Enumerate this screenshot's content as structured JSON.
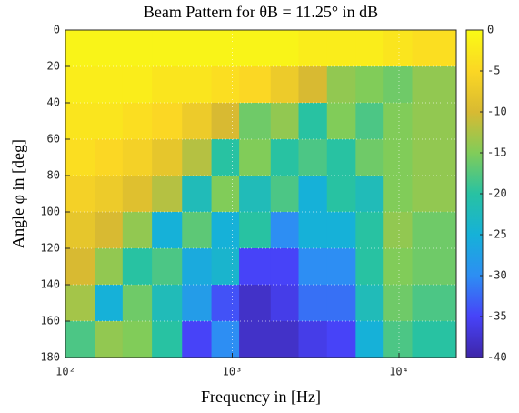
{
  "chart_data": {
    "type": "heatmap",
    "title": "Beam Pattern for θB = 11.25° in dB",
    "x_label": "Frequency in [Hz]",
    "y_label": "Angle φ in [deg]",
    "x_scale": "log",
    "xlim": [
      100,
      22050
    ],
    "xticks": [
      {
        "value": 100,
        "label": "10²"
      },
      {
        "value": 1000,
        "label": "10³"
      },
      {
        "value": 10000,
        "label": "10⁴"
      }
    ],
    "ylim": [
      0,
      180
    ],
    "yticks": [
      0,
      20,
      40,
      60,
      80,
      100,
      120,
      140,
      160,
      180
    ],
    "y_inverted": true,
    "grid": true,
    "xbins": [
      100,
      150,
      220,
      330,
      500,
      750,
      1100,
      1700,
      2500,
      3700,
      5500,
      8000,
      12000,
      22050
    ],
    "ybins": [
      0,
      20,
      40,
      60,
      80,
      100,
      120,
      140,
      160,
      180
    ],
    "z": [
      [
        -1,
        -1,
        -1,
        -1,
        -1,
        -1,
        -1,
        -1,
        -2,
        -2,
        -2,
        -3,
        -4
      ],
      [
        -2,
        -2,
        -2,
        -3,
        -3,
        -4,
        -5,
        -7,
        -10,
        -14,
        -15,
        -16,
        -14
      ],
      [
        -3,
        -3,
        -4,
        -5,
        -7,
        -10,
        -16,
        -14,
        -20,
        -15,
        -18,
        -15,
        -14
      ],
      [
        -4,
        -5,
        -6,
        -8,
        -12,
        -20,
        -15,
        -20,
        -18,
        -20,
        -16,
        -15,
        -14
      ],
      [
        -6,
        -7,
        -9,
        -12,
        -22,
        -15,
        -22,
        -18,
        -25,
        -20,
        -22,
        -15,
        -14
      ],
      [
        -8,
        -10,
        -14,
        -25,
        -17,
        -25,
        -20,
        -30,
        -25,
        -25,
        -20,
        -14,
        -16
      ],
      [
        -10,
        -14,
        -20,
        -18,
        -26,
        -24,
        -35,
        -35,
        -30,
        -30,
        -20,
        -15,
        -16
      ],
      [
        -13,
        -25,
        -16,
        -22,
        -28,
        -34,
        -38,
        -36,
        -32,
        -32,
        -22,
        -16,
        -18
      ],
      [
        -18,
        -14,
        -15,
        -20,
        -35,
        -30,
        -38,
        -38,
        -36,
        -35,
        -25,
        -18,
        -20
      ]
    ],
    "clim": [
      -40,
      0
    ],
    "cticks": [
      0,
      -5,
      -10,
      -15,
      -20,
      -25,
      -30,
      -35,
      -40
    ],
    "colormap": [
      "#3e26a8",
      "#4743f8",
      "#2d8ef3",
      "#16b1d8",
      "#28c2a2",
      "#81cc59",
      "#d8ba32",
      "#fbd724",
      "#f9fb15"
    ]
  }
}
